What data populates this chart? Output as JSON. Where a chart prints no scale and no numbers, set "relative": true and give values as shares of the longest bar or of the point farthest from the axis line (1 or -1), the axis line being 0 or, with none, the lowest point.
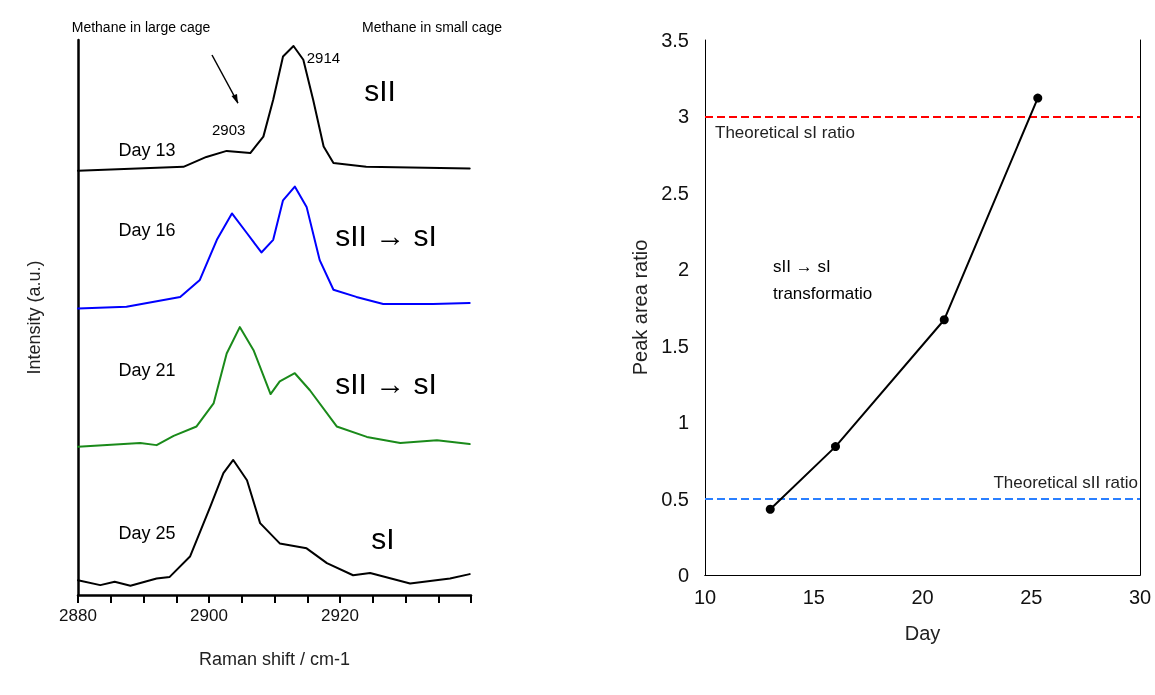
{
  "chart_data": [
    {
      "type": "line",
      "relative": true,
      "xlabel": "Raman shift / cm-1",
      "ylabel": "Intensity (a.u.)",
      "xlim": [
        2880,
        2940
      ],
      "xticks": [
        2880,
        {
          "value": 2885,
          "label": null
        },
        {
          "value": 2890,
          "label": null
        },
        {
          "value": 2895,
          "label": null
        },
        2900,
        {
          "value": 2905,
          "label": null
        },
        {
          "value": 2910,
          "label": null
        },
        {
          "value": 2915,
          "label": null
        },
        2920,
        {
          "value": 2925,
          "label": null
        },
        {
          "value": 2930,
          "label": null
        },
        {
          "value": 2935,
          "label": null
        },
        {
          "value": 2940,
          "label": null
        }
      ],
      "tick_labels": "x",
      "grid": false,
      "legend": false,
      "marker": "none",
      "line_style": "solid",
      "series": [
        {
          "name": "Day 13",
          "color": "#000000",
          "x": [
            2880,
            2896.1,
            2899.6,
            2902.7,
            2906.3,
            2908.3,
            2909.8,
            2911.3,
            2912.9,
            2914.4,
            2915.9,
            2917.5,
            2919,
            2924,
            2939.8
          ],
          "values": [
            0.773,
            0.78,
            0.798,
            0.809,
            0.805,
            0.835,
            0.902,
            0.981,
            1.0,
            0.975,
            0.902,
            0.817,
            0.787,
            0.78,
            0.777
          ]
        },
        {
          "name": "Day 16",
          "color": "#0000ff",
          "x": [
            2880,
            2887.4,
            2895.6,
            2898.6,
            2901.2,
            2903.5,
            2905.8,
            2908,
            2909.8,
            2911.3,
            2913.1,
            2914.9,
            2916.9,
            2919,
            2922.5,
            2926.6,
            2934.2,
            2939.8
          ],
          "values": [
            0.522,
            0.525,
            0.543,
            0.574,
            0.647,
            0.695,
            0.659,
            0.624,
            0.647,
            0.719,
            0.744,
            0.707,
            0.61,
            0.556,
            0.543,
            0.53,
            0.53,
            0.532
          ]
        },
        {
          "name": "Day 21",
          "color": "#1a8a1a",
          "x": [
            2880,
            2889.5,
            2892,
            2894.6,
            2898.1,
            2900.7,
            2902.7,
            2904.7,
            2906.8,
            2909.4,
            2910.8,
            2913.1,
            2915.4,
            2919.5,
            2924.1,
            2929.2,
            2934.8,
            2939.8
          ],
          "values": [
            0.27,
            0.277,
            0.273,
            0.29,
            0.307,
            0.349,
            0.44,
            0.488,
            0.446,
            0.366,
            0.389,
            0.404,
            0.373,
            0.307,
            0.288,
            0.277,
            0.282,
            0.275
          ]
        },
        {
          "name": "Day 25",
          "color": "#000000",
          "x": [
            2880,
            2883.4,
            2885.6,
            2888,
            2892,
            2894,
            2897.1,
            2900.2,
            2902.2,
            2903.7,
            2905.8,
            2907.8,
            2910.8,
            2914.9,
            2918,
            2922,
            2924.6,
            2930.7,
            2936.8,
            2939.8
          ],
          "values": [
            0.027,
            0.018,
            0.024,
            0.017,
            0.03,
            0.033,
            0.07,
            0.161,
            0.222,
            0.246,
            0.209,
            0.131,
            0.094,
            0.085,
            0.058,
            0.036,
            0.04,
            0.021,
            0.03,
            0.038
          ]
        }
      ],
      "annotations": [
        "Methane in large cage",
        "Methane in small cage",
        {
          "text": "2914",
          "x": 2914,
          "y": 1.0
        },
        {
          "text": "2903",
          "x": 2903,
          "y": 0.809
        },
        "sII",
        "sII → sI",
        "sII → sI",
        "sI"
      ]
    },
    {
      "type": "line",
      "xlabel": "Day",
      "ylabel": "Peak area ratio",
      "xlim": [
        10,
        30
      ],
      "xticks": [
        10,
        15,
        20,
        25,
        30
      ],
      "ylim": [
        0,
        3.5
      ],
      "yticks": [
        0,
        0.5,
        1,
        1.5,
        2,
        2.5,
        3,
        3.5
      ],
      "grid": false,
      "legend": false,
      "marker": "circle",
      "line_style": "solid",
      "series": [
        {
          "color": "#000000",
          "x": [
            13,
            16,
            21,
            25.3
          ],
          "values": [
            0.43,
            0.84,
            1.67,
            3.12
          ]
        }
      ],
      "ref_lines": [
        {
          "axis": "y",
          "value": 3,
          "label": "Theoretical sI ratio",
          "color": "#ff0000",
          "line_style": "dashed"
        },
        {
          "axis": "y",
          "value": 0.5,
          "label": "Theoretical sII ratio",
          "color": "#2a7fff",
          "line_style": "dashed"
        }
      ],
      "annotations": [
        "sII → sI\ntransformatio"
      ]
    }
  ]
}
